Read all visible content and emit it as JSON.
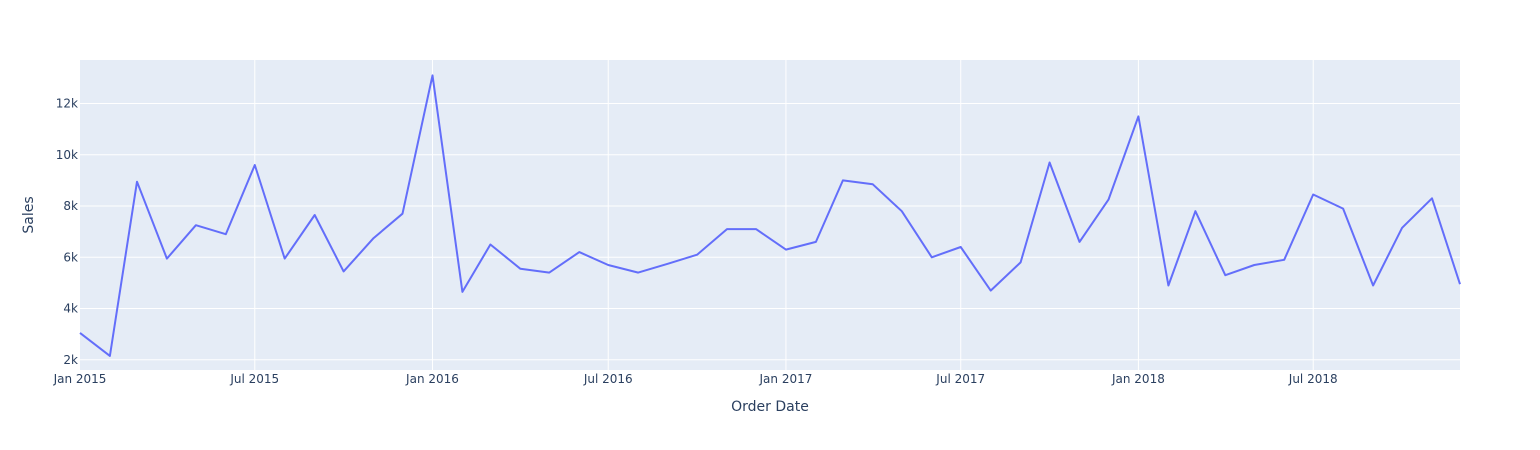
{
  "chart_data": {
    "type": "line",
    "xlabel": "Order Date",
    "ylabel": "Sales",
    "grid": true,
    "colors": {
      "plot_bg": "#e5ecf6",
      "grid": "#ffffff",
      "line": "#636efa",
      "text": "#2a3f5f"
    },
    "xlim": [
      "2015-01-01",
      "2018-11-30"
    ],
    "ylim": [
      1600,
      13700
    ],
    "x_ticks": [
      {
        "date": "2015-01-01",
        "label": "Jan 2015"
      },
      {
        "date": "2015-07-01",
        "label": "Jul 2015"
      },
      {
        "date": "2016-01-01",
        "label": "Jan 2016"
      },
      {
        "date": "2016-07-01",
        "label": "Jul 2016"
      },
      {
        "date": "2017-01-01",
        "label": "Jan 2017"
      },
      {
        "date": "2017-07-01",
        "label": "Jul 2017"
      },
      {
        "date": "2018-01-01",
        "label": "Jan 2018"
      },
      {
        "date": "2018-07-01",
        "label": "Jul 2018"
      }
    ],
    "y_ticks": [
      {
        "value": 2000,
        "label": "2k"
      },
      {
        "value": 4000,
        "label": "4k"
      },
      {
        "value": 6000,
        "label": "6k"
      },
      {
        "value": 8000,
        "label": "8k"
      },
      {
        "value": 10000,
        "label": "10k"
      },
      {
        "value": 12000,
        "label": "12k"
      }
    ],
    "series": [
      {
        "x": [
          "2015-01-01",
          "2015-02-01",
          "2015-03-01",
          "2015-04-01",
          "2015-05-01",
          "2015-06-01",
          "2015-07-01",
          "2015-08-01",
          "2015-09-01",
          "2015-10-01",
          "2015-11-01",
          "2015-12-01",
          "2016-01-01",
          "2016-02-01",
          "2016-03-01",
          "2016-04-01",
          "2016-05-01",
          "2016-06-01",
          "2016-07-01",
          "2016-08-01",
          "2016-09-01",
          "2016-10-01",
          "2016-11-01",
          "2016-12-01",
          "2017-01-01",
          "2017-02-01",
          "2017-03-01",
          "2017-04-01",
          "2017-05-01",
          "2017-06-01",
          "2017-07-01",
          "2017-08-01",
          "2017-09-01",
          "2017-10-01",
          "2017-11-01",
          "2017-12-01",
          "2018-01-01",
          "2018-02-01",
          "2018-03-01",
          "2018-04-01",
          "2018-05-01",
          "2018-06-01",
          "2018-07-01",
          "2018-08-01",
          "2018-09-01",
          "2018-10-01",
          "2018-11-01",
          "2018-11-30"
        ],
        "y": [
          3050,
          2150,
          8950,
          5950,
          7250,
          6900,
          9600,
          5950,
          7650,
          5450,
          6750,
          7700,
          13100,
          4650,
          6500,
          5550,
          5400,
          6200,
          5700,
          5400,
          5750,
          6100,
          7100,
          7100,
          6300,
          6600,
          9000,
          8850,
          7800,
          6000,
          6400,
          4700,
          5800,
          9700,
          6600,
          8250,
          11500,
          4900,
          7800,
          5300,
          5700,
          5900,
          8450,
          7900,
          4900,
          7150,
          8300,
          4950
        ]
      }
    ]
  }
}
